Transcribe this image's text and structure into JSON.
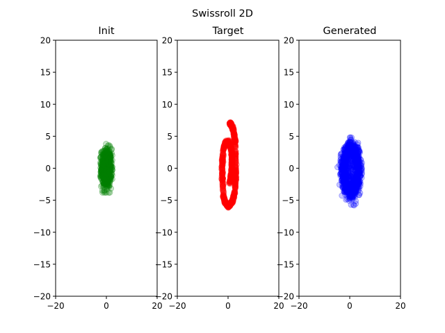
{
  "figure": {
    "title": "Swissroll 2D",
    "background": "#ffffff"
  },
  "chart_data": [
    {
      "type": "scatter",
      "title": "Init",
      "xlabel": "",
      "ylabel": "",
      "xlim": [
        -20,
        20
      ],
      "ylim": [
        -20,
        20
      ],
      "xticks": [
        "−20",
        "0",
        "20"
      ],
      "yticks": [
        "20",
        "15",
        "10",
        "5",
        "0",
        "−5",
        "−10",
        "−15",
        "−20"
      ],
      "grid": false,
      "color": "#008000",
      "shape": "gaussian-blob",
      "center": [
        0,
        0
      ],
      "spread": [
        1.0,
        1.5
      ],
      "extent_x": [
        -2.3,
        2.3
      ],
      "extent_y": [
        -3.8,
        3.8
      ]
    },
    {
      "type": "scatter",
      "title": "Target",
      "xlabel": "",
      "ylabel": "",
      "xlim": [
        -20,
        20
      ],
      "ylim": [
        -20,
        20
      ],
      "xticks": [
        "−20",
        "0",
        "20"
      ],
      "yticks": [
        "20",
        "15",
        "10",
        "5",
        "0",
        "−5",
        "−10",
        "−15",
        "−20"
      ],
      "grid": false,
      "color": "#ff0000",
      "shape": "swiss-roll",
      "curve_start": [
        0.7,
        -2.3
      ],
      "curve_end": [
        0.7,
        7.0
      ],
      "extent_x": [
        -6.0,
        6.5
      ],
      "extent_y": [
        -6.0,
        7.2
      ]
    },
    {
      "type": "scatter",
      "title": "Generated",
      "xlabel": "",
      "ylabel": "",
      "xlim": [
        -20,
        20
      ],
      "ylim": [
        -20,
        20
      ],
      "xticks": [
        "−20",
        "0",
        "20"
      ],
      "yticks": [
        "20",
        "15",
        "10",
        "5",
        "0",
        "−5",
        "−10",
        "−15",
        "−20"
      ],
      "grid": false,
      "color": "#0000ff",
      "shape": "noisy-ring",
      "center": [
        0.5,
        -0.3
      ],
      "extent_x": [
        -4.8,
        6.0
      ],
      "extent_y": [
        -5.8,
        4.8
      ]
    }
  ]
}
